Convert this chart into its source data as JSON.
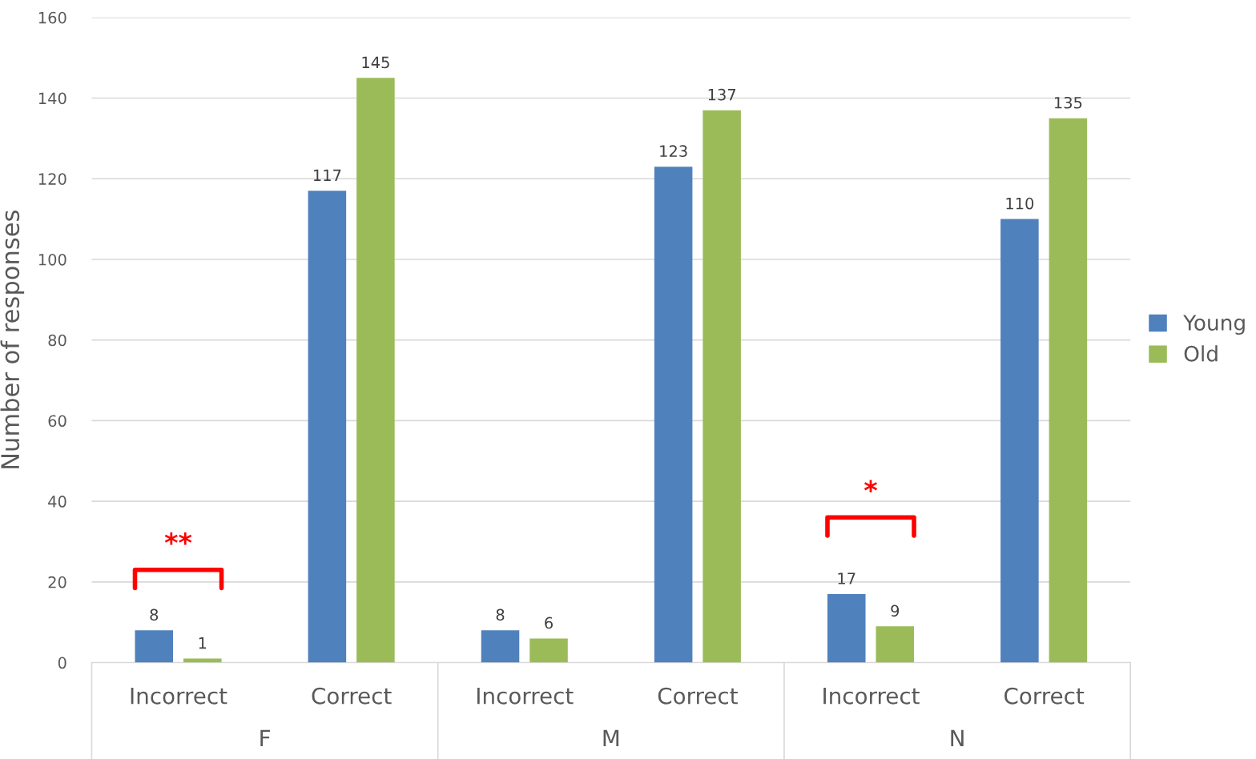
{
  "chart_data": {
    "type": "bar",
    "categories": [
      "Incorrect",
      "Correct",
      "Incorrect",
      "Correct",
      "Incorrect",
      "Correct"
    ],
    "series": [
      {
        "name": "Young",
        "color": "#4f81bd",
        "values": [
          8,
          117,
          8,
          123,
          17,
          110
        ]
      },
      {
        "name": "Old",
        "color": "#9bbb59",
        "values": [
          1,
          145,
          6,
          137,
          9,
          135
        ]
      }
    ],
    "ylabel": "Number of responses",
    "ylim": [
      0,
      160
    ],
    "yticks": [
      0,
      20,
      40,
      60,
      80,
      100,
      120,
      140,
      160
    ],
    "grid": "y",
    "legend": "right",
    "data_labels": true,
    "annotations": [
      "**",
      "*",
      "F",
      "M",
      "N"
    ]
  }
}
